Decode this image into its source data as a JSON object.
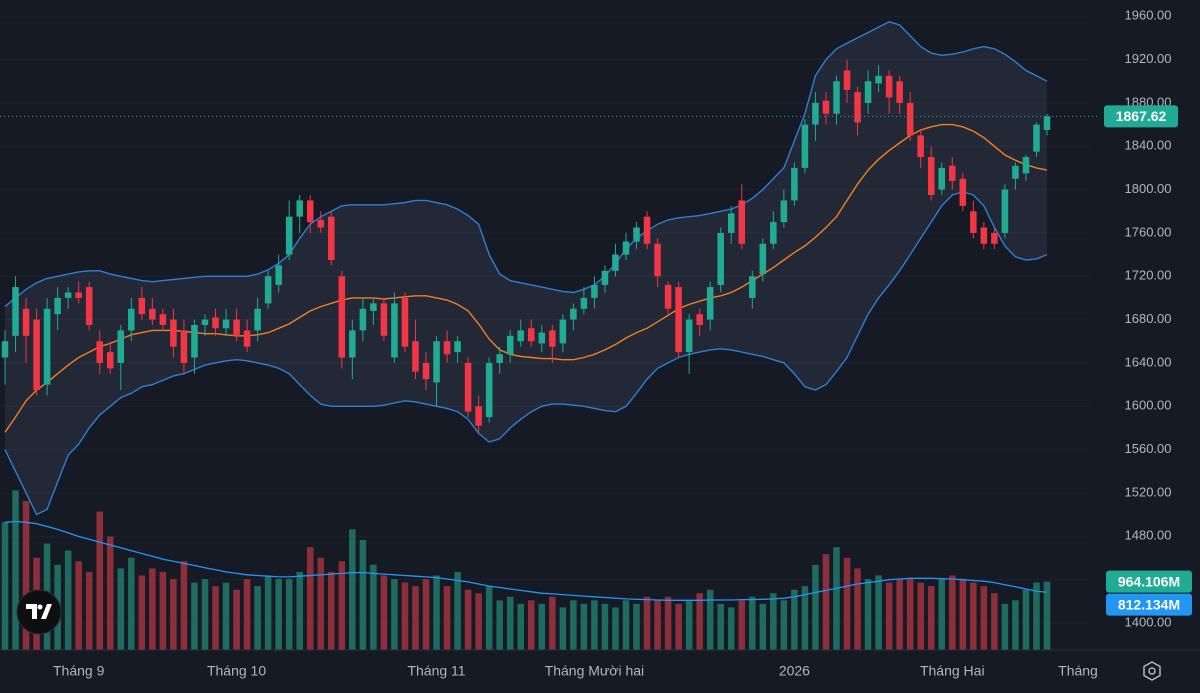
{
  "chart_data": {
    "type": "candlestick",
    "up_color": "#22ab94",
    "down_color": "#f23645",
    "volume_up_color": "#1f6b60",
    "volume_down_color": "#8c2f3b",
    "band_color": "#2f7fd0",
    "middle_color": "#f0801f",
    "volume_ma_color": "#2196f3",
    "grid": true,
    "ylim": [
      1375,
      1975
    ],
    "yticks": [
      {
        "value": 1400,
        "label": "1400.00"
      },
      {
        "value": 1440,
        "label": "1440.00"
      },
      {
        "value": 1480,
        "label": "1480.00"
      },
      {
        "value": 1520,
        "label": "1520.00"
      },
      {
        "value": 1560,
        "label": "1560.00"
      },
      {
        "value": 1600,
        "label": "1600.00"
      },
      {
        "value": 1640,
        "label": "1640.00"
      },
      {
        "value": 1680,
        "label": "1680.00"
      },
      {
        "value": 1720,
        "label": "1720.00"
      },
      {
        "value": 1760,
        "label": "1760.00"
      },
      {
        "value": 1800,
        "label": "1800.00"
      },
      {
        "value": 1840,
        "label": "1840.00"
      },
      {
        "value": 1880,
        "label": "1880.00"
      },
      {
        "value": 1920,
        "label": "1920.00"
      },
      {
        "value": 1960,
        "label": "1960.00"
      }
    ],
    "y2lim": [
      0,
      3100
    ],
    "categories": [
      null,
      null,
      null,
      null,
      null,
      null,
      null,
      "Tháng 9",
      null,
      null,
      null,
      null,
      null,
      null,
      null,
      null,
      null,
      null,
      null,
      null,
      null,
      null,
      "Tháng 10",
      null,
      null,
      null,
      null,
      null,
      null,
      null,
      null,
      null,
      null,
      null,
      null,
      null,
      null,
      null,
      null,
      null,
      null,
      "Tháng 11",
      null,
      null,
      null,
      null,
      null,
      null,
      null,
      null,
      null,
      null,
      null,
      null,
      null,
      null,
      "Tháng Mười hai",
      null,
      null,
      null,
      null,
      null,
      null,
      null,
      null,
      null,
      null,
      null,
      null,
      null,
      null,
      null,
      null,
      null,
      null,
      "2026",
      null,
      null,
      null,
      null,
      null,
      null,
      null,
      null,
      null,
      null,
      null,
      null,
      null,
      null,
      "Tháng Hai",
      null,
      null,
      null,
      null,
      null,
      null,
      null,
      null,
      null
    ],
    "next_month_label": "Tháng",
    "candles": [
      [
        1645,
        1670,
        1620,
        1660
      ],
      [
        1665,
        1720,
        1650,
        1710
      ],
      [
        1690,
        1700,
        1640,
        1665
      ],
      [
        1680,
        1690,
        1610,
        1615
      ],
      [
        1620,
        1700,
        1610,
        1690
      ],
      [
        1685,
        1710,
        1670,
        1700
      ],
      [
        1700,
        1710,
        1690,
        1705
      ],
      [
        1705,
        1715,
        1695,
        1700
      ],
      [
        1710,
        1715,
        1670,
        1675
      ],
      [
        1660,
        1670,
        1630,
        1640
      ],
      [
        1650,
        1660,
        1630,
        1635
      ],
      [
        1640,
        1675,
        1615,
        1670
      ],
      [
        1670,
        1700,
        1660,
        1690
      ],
      [
        1700,
        1710,
        1680,
        1685
      ],
      [
        1690,
        1700,
        1675,
        1680
      ],
      [
        1685,
        1690,
        1670,
        1675
      ],
      [
        1680,
        1690,
        1645,
        1655
      ],
      [
        1670,
        1680,
        1630,
        1640
      ],
      [
        1645,
        1680,
        1630,
        1675
      ],
      [
        1675,
        1685,
        1665,
        1680
      ],
      [
        1682,
        1690,
        1665,
        1672
      ],
      [
        1672,
        1690,
        1665,
        1680
      ],
      [
        1680,
        1690,
        1660,
        1665
      ],
      [
        1670,
        1680,
        1650,
        1655
      ],
      [
        1670,
        1700,
        1660,
        1690
      ],
      [
        1695,
        1725,
        1690,
        1720
      ],
      [
        1712,
        1740,
        1705,
        1730
      ],
      [
        1740,
        1790,
        1735,
        1775
      ],
      [
        1775,
        1795,
        1760,
        1790
      ],
      [
        1790,
        1795,
        1760,
        1770
      ],
      [
        1772,
        1780,
        1760,
        1765
      ],
      [
        1775,
        1780,
        1730,
        1735
      ],
      [
        1720,
        1725,
        1635,
        1645
      ],
      [
        1645,
        1680,
        1625,
        1670
      ],
      [
        1670,
        1700,
        1660,
        1690
      ],
      [
        1688,
        1700,
        1675,
        1695
      ],
      [
        1695,
        1700,
        1660,
        1665
      ],
      [
        1645,
        1705,
        1640,
        1695
      ],
      [
        1700,
        1705,
        1650,
        1655
      ],
      [
        1660,
        1680,
        1625,
        1632
      ],
      [
        1640,
        1650,
        1615,
        1625
      ],
      [
        1622,
        1665,
        1600,
        1660
      ],
      [
        1660,
        1670,
        1640,
        1648
      ],
      [
        1650,
        1665,
        1640,
        1660
      ],
      [
        1640,
        1645,
        1590,
        1595
      ],
      [
        1600,
        1610,
        1575,
        1582
      ],
      [
        1590,
        1645,
        1585,
        1640
      ],
      [
        1640,
        1655,
        1630,
        1648
      ],
      [
        1648,
        1670,
        1640,
        1665
      ],
      [
        1660,
        1680,
        1655,
        1670
      ],
      [
        1672,
        1680,
        1655,
        1660
      ],
      [
        1658,
        1675,
        1650,
        1668
      ],
      [
        1670,
        1675,
        1640,
        1655
      ],
      [
        1658,
        1685,
        1650,
        1680
      ],
      [
        1680,
        1695,
        1670,
        1690
      ],
      [
        1690,
        1710,
        1685,
        1700
      ],
      [
        1700,
        1720,
        1690,
        1712
      ],
      [
        1712,
        1730,
        1705,
        1725
      ],
      [
        1725,
        1750,
        1720,
        1740
      ],
      [
        1740,
        1760,
        1735,
        1752
      ],
      [
        1752,
        1770,
        1745,
        1765
      ],
      [
        1775,
        1780,
        1745,
        1750
      ],
      [
        1750,
        1755,
        1710,
        1720
      ],
      [
        1712,
        1715,
        1685,
        1690
      ],
      [
        1710,
        1715,
        1645,
        1650
      ],
      [
        1650,
        1685,
        1630,
        1680
      ],
      [
        1685,
        1690,
        1665,
        1675
      ],
      [
        1680,
        1715,
        1670,
        1710
      ],
      [
        1712,
        1765,
        1705,
        1760
      ],
      [
        1760,
        1785,
        1750,
        1778
      ],
      [
        1790,
        1805,
        1745,
        1750
      ],
      [
        1700,
        1725,
        1690,
        1720
      ],
      [
        1722,
        1755,
        1715,
        1750
      ],
      [
        1750,
        1780,
        1745,
        1770
      ],
      [
        1770,
        1800,
        1765,
        1790
      ],
      [
        1790,
        1825,
        1785,
        1820
      ],
      [
        1820,
        1865,
        1815,
        1860
      ],
      [
        1860,
        1890,
        1845,
        1880
      ],
      [
        1882,
        1890,
        1860,
        1870
      ],
      [
        1870,
        1905,
        1860,
        1900
      ],
      [
        1910,
        1920,
        1880,
        1892
      ],
      [
        1890,
        1895,
        1850,
        1862
      ],
      [
        1880,
        1910,
        1870,
        1900
      ],
      [
        1898,
        1915,
        1890,
        1905
      ],
      [
        1905,
        1910,
        1870,
        1885
      ],
      [
        1900,
        1905,
        1870,
        1880
      ],
      [
        1880,
        1890,
        1845,
        1850
      ],
      [
        1850,
        1855,
        1820,
        1830
      ],
      [
        1830,
        1840,
        1790,
        1795
      ],
      [
        1800,
        1825,
        1795,
        1820
      ],
      [
        1822,
        1830,
        1800,
        1808
      ],
      [
        1810,
        1815,
        1780,
        1785
      ],
      [
        1780,
        1790,
        1755,
        1760
      ],
      [
        1765,
        1770,
        1745,
        1750
      ],
      [
        1760,
        1765,
        1745,
        1750
      ],
      [
        1760,
        1805,
        1755,
        1800
      ],
      [
        1810,
        1825,
        1800,
        1822
      ],
      [
        1815,
        1832,
        1808,
        1830
      ],
      [
        1835,
        1862,
        1830,
        1860
      ],
      [
        1855,
        1870,
        1850,
        1867.62
      ]
    ],
    "bollinger": {
      "upper": [
        1692,
        1700,
        1708,
        1714,
        1718,
        1720,
        1722,
        1724,
        1725,
        1725,
        1722,
        1720,
        1718,
        1716,
        1715,
        1716,
        1717,
        1718,
        1719,
        1720,
        1720,
        1720,
        1720,
        1720,
        1722,
        1726,
        1732,
        1740,
        1755,
        1768,
        1775,
        1780,
        1785,
        1786,
        1786,
        1786,
        1786,
        1787,
        1788,
        1790,
        1790,
        1788,
        1786,
        1782,
        1776,
        1768,
        1740,
        1722,
        1716,
        1714,
        1712,
        1710,
        1708,
        1706,
        1705,
        1708,
        1712,
        1720,
        1732,
        1745,
        1755,
        1762,
        1768,
        1772,
        1774,
        1775,
        1776,
        1778,
        1780,
        1782,
        1786,
        1792,
        1800,
        1810,
        1820,
        1845,
        1870,
        1905,
        1920,
        1930,
        1935,
        1940,
        1945,
        1950,
        1955,
        1952,
        1942,
        1932,
        1926,
        1924,
        1925,
        1927,
        1930,
        1932,
        1930,
        1925,
        1918,
        1910,
        1905,
        1900
      ],
      "middle": [
        1576,
        1590,
        1605,
        1615,
        1622,
        1630,
        1638,
        1645,
        1650,
        1655,
        1658,
        1662,
        1666,
        1668,
        1670,
        1670,
        1670,
        1669,
        1668,
        1667,
        1667,
        1666,
        1665,
        1665,
        1666,
        1668,
        1672,
        1676,
        1682,
        1688,
        1692,
        1695,
        1698,
        1700,
        1700,
        1700,
        1699,
        1700,
        1701,
        1702,
        1702,
        1700,
        1698,
        1694,
        1688,
        1676,
        1662,
        1652,
        1648,
        1646,
        1645,
        1644,
        1644,
        1643,
        1643,
        1645,
        1648,
        1652,
        1657,
        1663,
        1668,
        1672,
        1678,
        1684,
        1690,
        1694,
        1697,
        1700,
        1702,
        1705,
        1710,
        1716,
        1722,
        1728,
        1735,
        1742,
        1748,
        1756,
        1765,
        1775,
        1790,
        1805,
        1818,
        1828,
        1836,
        1843,
        1850,
        1855,
        1858,
        1860,
        1860,
        1858,
        1854,
        1848,
        1840,
        1832,
        1827,
        1823,
        1820,
        1818
      ],
      "lower": [
        1560,
        1540,
        1520,
        1500,
        1505,
        1530,
        1555,
        1565,
        1580,
        1592,
        1600,
        1608,
        1612,
        1618,
        1620,
        1624,
        1628,
        1630,
        1634,
        1638,
        1640,
        1642,
        1643,
        1642,
        1640,
        1638,
        1635,
        1630,
        1620,
        1610,
        1602,
        1600,
        1600,
        1600,
        1600,
        1600,
        1601,
        1603,
        1605,
        1604,
        1602,
        1600,
        1598,
        1595,
        1588,
        1575,
        1567,
        1570,
        1580,
        1588,
        1595,
        1600,
        1602,
        1602,
        1601,
        1600,
        1598,
        1596,
        1595,
        1600,
        1612,
        1625,
        1635,
        1640,
        1645,
        1648,
        1650,
        1652,
        1653,
        1652,
        1650,
        1648,
        1646,
        1643,
        1640,
        1630,
        1618,
        1615,
        1620,
        1632,
        1645,
        1665,
        1685,
        1700,
        1712,
        1725,
        1740,
        1755,
        1770,
        1785,
        1795,
        1798,
        1795,
        1785,
        1765,
        1748,
        1738,
        1735,
        1736,
        1740
      ]
    },
    "volume": {
      "values": [
        1800,
        2250,
        2100,
        1300,
        1500,
        1200,
        1400,
        1250,
        1100,
        1950,
        1600,
        1150,
        1300,
        1050,
        1150,
        1100,
        1000,
        1250,
        950,
        1000,
        900,
        950,
        850,
        1000,
        900,
        1050,
        1000,
        1000,
        1100,
        1450,
        1300,
        1100,
        1250,
        1700,
        1550,
        1200,
        1050,
        1000,
        950,
        900,
        1000,
        1050,
        900,
        1100,
        850,
        800,
        900,
        700,
        750,
        650,
        700,
        650,
        750,
        600,
        700,
        650,
        700,
        650,
        600,
        700,
        650,
        750,
        700,
        750,
        650,
        700,
        800,
        850,
        650,
        600,
        700,
        750,
        650,
        800,
        700,
        850,
        900,
        1200,
        1350,
        1450,
        1300,
        1150,
        1000,
        1050,
        950,
        1000,
        1000,
        950,
        900,
        1000,
        1050,
        1000,
        950,
        900,
        800,
        650,
        700,
        850,
        950,
        964.106
      ],
      "ma": [
        1800,
        1810,
        1800,
        1780,
        1740,
        1700,
        1650,
        1600,
        1560,
        1520,
        1480,
        1440,
        1400,
        1360,
        1320,
        1280,
        1250,
        1220,
        1190,
        1160,
        1130,
        1100,
        1080,
        1060,
        1050,
        1040,
        1030,
        1030,
        1040,
        1050,
        1060,
        1070,
        1080,
        1090,
        1090,
        1080,
        1070,
        1060,
        1050,
        1040,
        1030,
        1020,
        1000,
        980,
        960,
        930,
        900,
        880,
        860,
        840,
        820,
        800,
        790,
        780,
        770,
        760,
        750,
        740,
        730,
        720,
        715,
        710,
        705,
        700,
        700,
        700,
        700,
        705,
        705,
        705,
        710,
        710,
        715,
        720,
        730,
        750,
        780,
        810,
        840,
        870,
        900,
        930,
        950,
        970,
        990,
        1000,
        1010,
        1010,
        1010,
        1005,
        1000,
        990,
        980,
        970,
        950,
        920,
        890,
        860,
        830,
        812.134
      ],
      "last_value_label": "964.106M",
      "last_ma_label": "812.134M"
    }
  }
}
